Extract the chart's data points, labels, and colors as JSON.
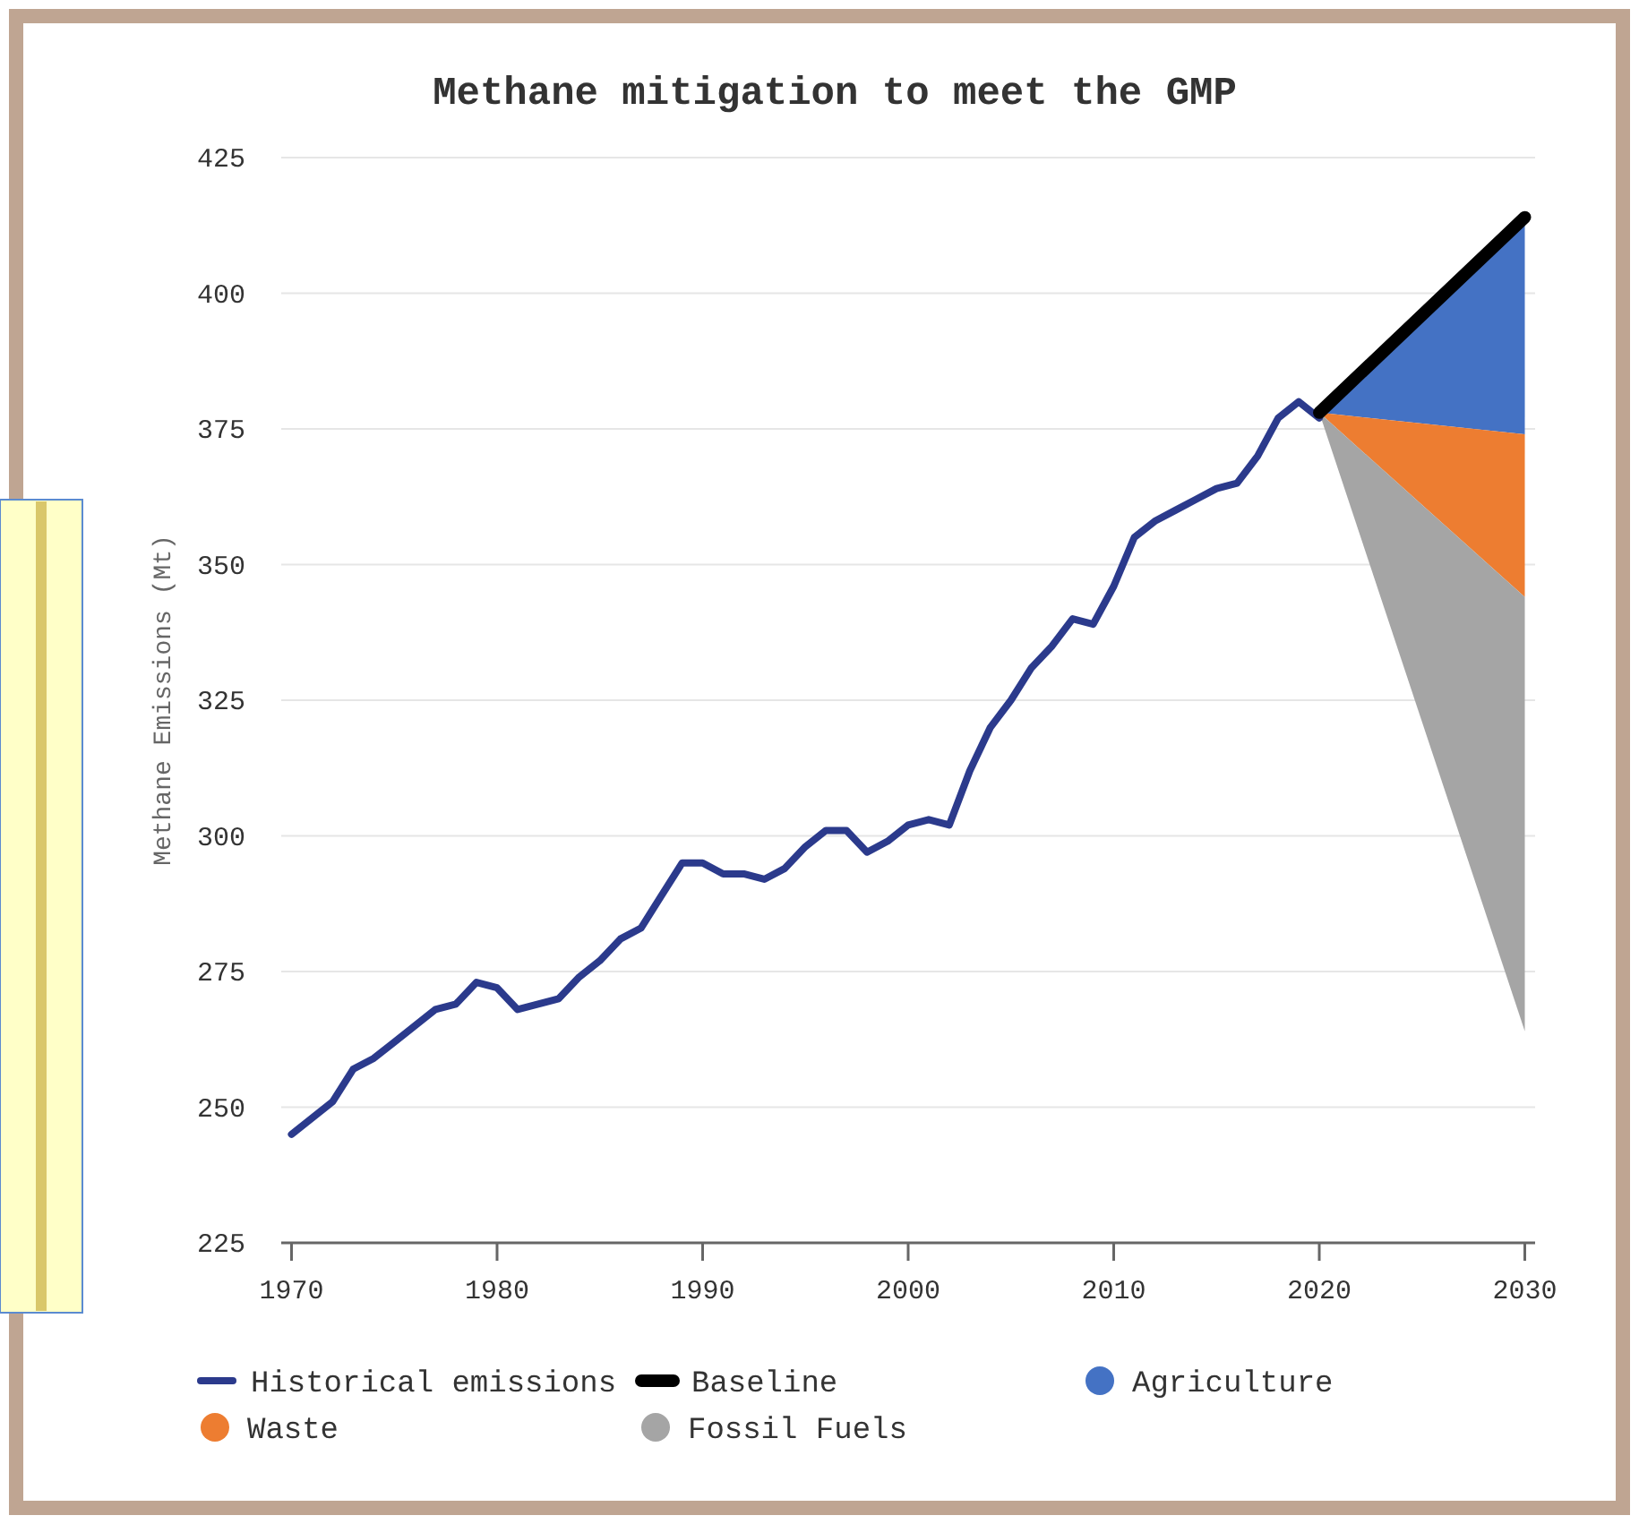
{
  "chart_data": {
    "type": "line",
    "title": "Methane mitigation to meet the GMP",
    "ylabel": "Methane Emissions (Mt)",
    "xlim": [
      1969.5,
      2030.5
    ],
    "xticks": [
      1970,
      1980,
      1990,
      2000,
      2010,
      2020,
      2030
    ],
    "ylim": [
      225,
      425
    ],
    "yticks": [
      225,
      250,
      275,
      300,
      325,
      350,
      375,
      400,
      425
    ],
    "grid": "y",
    "legend": "bottom",
    "x": [
      1970,
      1971,
      1972,
      1973,
      1974,
      1975,
      1976,
      1977,
      1978,
      1979,
      1980,
      1981,
      1982,
      1983,
      1984,
      1985,
      1986,
      1987,
      1988,
      1989,
      1990,
      1991,
      1992,
      1993,
      1994,
      1995,
      1996,
      1997,
      1998,
      1999,
      2000,
      2001,
      2002,
      2003,
      2004,
      2005,
      2006,
      2007,
      2008,
      2009,
      2010,
      2011,
      2012,
      2013,
      2014,
      2015,
      2016,
      2017,
      2018,
      2019,
      2020,
      2030
    ],
    "series": [
      {
        "name": "Historical emissions",
        "color": "#2b3a8c",
        "values": [
          245,
          248,
          251,
          257,
          259,
          262,
          265,
          268,
          269,
          273,
          272,
          268,
          269,
          270,
          274,
          277,
          281,
          283,
          289,
          295,
          295,
          293,
          293,
          292,
          294,
          298,
          301,
          301,
          297,
          299,
          302,
          303,
          302,
          312,
          320,
          325,
          331,
          335,
          340,
          339,
          346,
          355,
          358,
          360,
          362,
          364,
          365,
          370,
          377,
          380,
          377,
          null
        ]
      },
      {
        "name": "Baseline",
        "type": "line",
        "color": "#000000",
        "values": [
          null,
          null,
          null,
          null,
          null,
          null,
          null,
          null,
          null,
          null,
          null,
          null,
          null,
          null,
          null,
          null,
          null,
          null,
          null,
          null,
          null,
          null,
          null,
          null,
          null,
          null,
          null,
          null,
          null,
          null,
          null,
          null,
          null,
          null,
          null,
          null,
          null,
          null,
          null,
          null,
          null,
          null,
          null,
          null,
          null,
          null,
          null,
          null,
          null,
          null,
          378,
          414
        ]
      },
      {
        "name": "Agriculture",
        "type": "area",
        "color": "#4472c4",
        "values": [
          null,
          null,
          null,
          null,
          null,
          null,
          null,
          null,
          null,
          null,
          null,
          null,
          null,
          null,
          null,
          null,
          null,
          null,
          null,
          null,
          null,
          null,
          null,
          null,
          null,
          null,
          null,
          null,
          null,
          null,
          null,
          null,
          null,
          null,
          null,
          null,
          null,
          null,
          null,
          null,
          null,
          null,
          null,
          null,
          null,
          null,
          null,
          null,
          null,
          null,
          null,
          null
        ],
        "lower": [
          null,
          null,
          null,
          null,
          null,
          null,
          null,
          null,
          null,
          null,
          null,
          null,
          null,
          null,
          null,
          null,
          null,
          null,
          null,
          null,
          null,
          null,
          null,
          null,
          null,
          null,
          null,
          null,
          null,
          null,
          null,
          null,
          null,
          null,
          null,
          null,
          null,
          null,
          null,
          null,
          null,
          null,
          null,
          null,
          null,
          null,
          null,
          null,
          null,
          null,
          378,
          374
        ],
        "upper": [
          null,
          null,
          null,
          null,
          null,
          null,
          null,
          null,
          null,
          null,
          null,
          null,
          null,
          null,
          null,
          null,
          null,
          null,
          null,
          null,
          null,
          null,
          null,
          null,
          null,
          null,
          null,
          null,
          null,
          null,
          null,
          null,
          null,
          null,
          null,
          null,
          null,
          null,
          null,
          null,
          null,
          null,
          null,
          null,
          null,
          null,
          null,
          null,
          null,
          null,
          378,
          414
        ]
      },
      {
        "name": "Waste",
        "type": "area",
        "color": "#ed7d31",
        "values": [
          null,
          null,
          null,
          null,
          null,
          null,
          null,
          null,
          null,
          null,
          null,
          null,
          null,
          null,
          null,
          null,
          null,
          null,
          null,
          null,
          null,
          null,
          null,
          null,
          null,
          null,
          null,
          null,
          null,
          null,
          null,
          null,
          null,
          null,
          null,
          null,
          null,
          null,
          null,
          null,
          null,
          null,
          null,
          null,
          null,
          null,
          null,
          null,
          null,
          null,
          null,
          null
        ],
        "lower": [
          null,
          null,
          null,
          null,
          null,
          null,
          null,
          null,
          null,
          null,
          null,
          null,
          null,
          null,
          null,
          null,
          null,
          null,
          null,
          null,
          null,
          null,
          null,
          null,
          null,
          null,
          null,
          null,
          null,
          null,
          null,
          null,
          null,
          null,
          null,
          null,
          null,
          null,
          null,
          null,
          null,
          null,
          null,
          null,
          null,
          null,
          null,
          null,
          null,
          null,
          378,
          344
        ],
        "upper": [
          null,
          null,
          null,
          null,
          null,
          null,
          null,
          null,
          null,
          null,
          null,
          null,
          null,
          null,
          null,
          null,
          null,
          null,
          null,
          null,
          null,
          null,
          null,
          null,
          null,
          null,
          null,
          null,
          null,
          null,
          null,
          null,
          null,
          null,
          null,
          null,
          null,
          null,
          null,
          null,
          null,
          null,
          null,
          null,
          null,
          null,
          null,
          null,
          null,
          null,
          378,
          374
        ]
      },
      {
        "name": "Fossil Fuels",
        "type": "area",
        "color": "#a5a5a5",
        "values": [
          null,
          null,
          null,
          null,
          null,
          null,
          null,
          null,
          null,
          null,
          null,
          null,
          null,
          null,
          null,
          null,
          null,
          null,
          null,
          null,
          null,
          null,
          null,
          null,
          null,
          null,
          null,
          null,
          null,
          null,
          null,
          null,
          null,
          null,
          null,
          null,
          null,
          null,
          null,
          null,
          null,
          null,
          null,
          null,
          null,
          null,
          null,
          null,
          null,
          null,
          null,
          null
        ],
        "lower": [
          null,
          null,
          null,
          null,
          null,
          null,
          null,
          null,
          null,
          null,
          null,
          null,
          null,
          null,
          null,
          null,
          null,
          null,
          null,
          null,
          null,
          null,
          null,
          null,
          null,
          null,
          null,
          null,
          null,
          null,
          null,
          null,
          null,
          null,
          null,
          null,
          null,
          null,
          null,
          null,
          null,
          null,
          null,
          null,
          null,
          null,
          null,
          null,
          null,
          null,
          378,
          264
        ],
        "upper": [
          null,
          null,
          null,
          null,
          null,
          null,
          null,
          null,
          null,
          null,
          null,
          null,
          null,
          null,
          null,
          null,
          null,
          null,
          null,
          null,
          null,
          null,
          null,
          null,
          null,
          null,
          null,
          null,
          null,
          null,
          null,
          null,
          null,
          null,
          null,
          null,
          null,
          null,
          null,
          null,
          null,
          null,
          null,
          null,
          null,
          null,
          null,
          null,
          null,
          null,
          378,
          344
        ]
      }
    ]
  }
}
